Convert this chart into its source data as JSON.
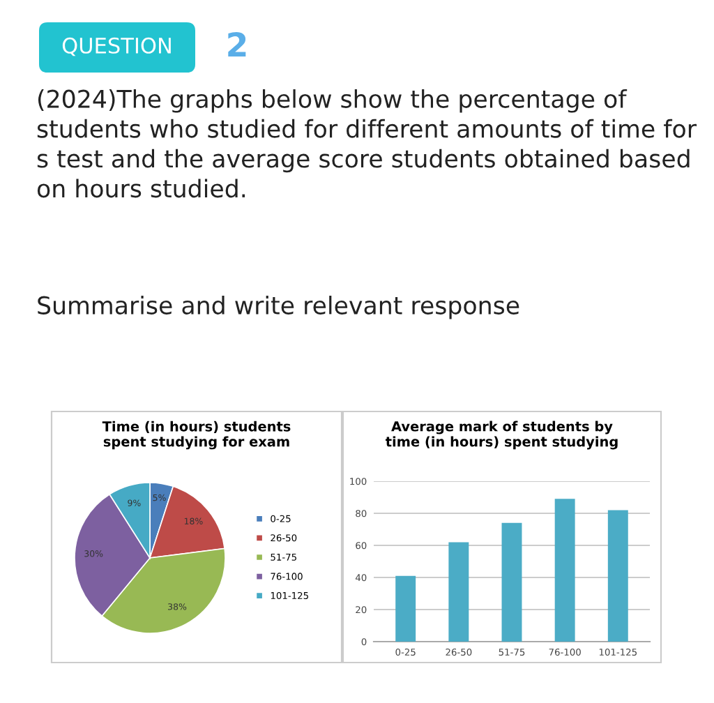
{
  "chart_data": [
    {
      "type": "pie",
      "title": "Time (in hours) students\nspent studying for exam",
      "annotations": [
        "QUESTION",
        "2",
        "(2024)The graphs below show the percentage of students who studied for different amounts of time for s test and the average score students obtained based on hours studied.",
        "Summarise and write relevant response"
      ],
      "categories": [
        "0-25",
        "26-50",
        "51-75",
        "76-100",
        "101-125"
      ],
      "values": [
        5,
        18,
        38,
        30,
        9
      ],
      "value_labels": [
        "5%",
        "18%",
        "38%",
        "30%",
        "9%"
      ],
      "colors": [
        "#4a7ebb",
        "#be4b48",
        "#98b954",
        "#7d60a0",
        "#46aac5"
      ],
      "legend": "right"
    },
    {
      "type": "bar",
      "title": "Average mark of students by\ntime (in hours) spent studying",
      "categories": [
        "0-25",
        "26-50",
        "51-75",
        "76-100",
        "101-125"
      ],
      "values": [
        41,
        62,
        74,
        89,
        82
      ],
      "color": "#4bacc6",
      "ylim": [
        0,
        100
      ],
      "yticks": [
        0,
        20,
        40,
        60,
        80,
        100
      ],
      "grid": "y"
    }
  ]
}
